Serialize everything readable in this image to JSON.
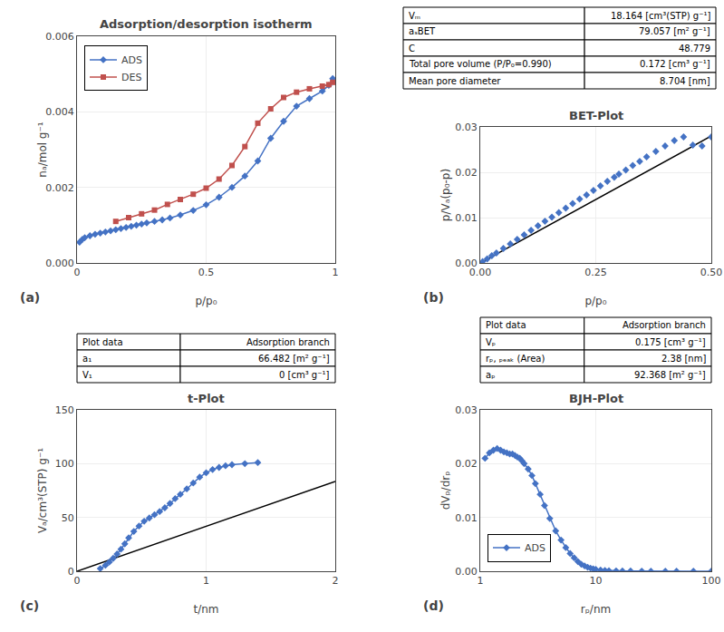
{
  "chart_data": [
    {
      "type": "line",
      "title": "Adsorption/desorption isotherm",
      "x_label": "p/p₀",
      "y_label": "nₐ/mol g⁻¹",
      "xlim": [
        0,
        1.0
      ],
      "xticks": [
        0,
        0.5,
        1
      ],
      "ylim": [
        0,
        0.006
      ],
      "yticks": [
        {
          "value": 0,
          "label": "0.000"
        },
        0.002,
        0.004,
        0.006
      ],
      "grid": true,
      "legend": "upper left",
      "series": [
        {
          "name": "ADS",
          "color": "#4472c4",
          "marker": "diamond",
          "x": [
            0.01,
            0.02,
            0.03,
            0.05,
            0.07,
            0.09,
            0.11,
            0.13,
            0.15,
            0.17,
            0.19,
            0.21,
            0.23,
            0.25,
            0.27,
            0.3,
            0.33,
            0.36,
            0.4,
            0.45,
            0.5,
            0.55,
            0.6,
            0.65,
            0.7,
            0.75,
            0.8,
            0.85,
            0.9,
            0.95,
            0.975,
            0.99
          ],
          "values": [
            0.00055,
            0.00062,
            0.00067,
            0.00072,
            0.00076,
            0.00079,
            0.00082,
            0.00085,
            0.00088,
            0.00091,
            0.00094,
            0.00097,
            0.001,
            0.00103,
            0.00106,
            0.0011,
            0.00114,
            0.00119,
            0.00127,
            0.00139,
            0.00154,
            0.00174,
            0.002,
            0.0023,
            0.0027,
            0.0033,
            0.00375,
            0.00415,
            0.00435,
            0.00455,
            0.0047,
            0.00488
          ]
        },
        {
          "name": "DES",
          "color": "#c0504d",
          "marker": "square",
          "x": [
            0.15,
            0.2,
            0.25,
            0.3,
            0.35,
            0.4,
            0.45,
            0.5,
            0.55,
            0.6,
            0.65,
            0.7,
            0.75,
            0.8,
            0.85,
            0.9,
            0.95,
            0.975,
            0.99
          ],
          "values": [
            0.0011,
            0.0012,
            0.0013,
            0.0014,
            0.00155,
            0.00168,
            0.00182,
            0.00198,
            0.00222,
            0.00258,
            0.00308,
            0.0037,
            0.00408,
            0.00438,
            0.00452,
            0.00461,
            0.00468,
            0.00472,
            0.00478
          ]
        }
      ],
      "annotations": [
        "(a)"
      ]
    },
    {
      "type": "line",
      "title": "BET-Plot",
      "x_label": "p/p₀",
      "y_label": "p/Vₐ(p₀-p)",
      "xlim": [
        0,
        0.5
      ],
      "xticks": [
        {
          "value": 0,
          "label": "0.00"
        },
        0.25,
        {
          "value": 0.5,
          "label": "0.50"
        }
      ],
      "ylim": [
        0,
        0.03
      ],
      "yticks": [
        {
          "value": 0,
          "label": "0.00"
        },
        0.01,
        0.02,
        0.03
      ],
      "grid": true,
      "series": [
        {
          "type": "line",
          "color": "#000000",
          "x": [
            0.0,
            0.5
          ],
          "values": [
            0.0,
            0.028
          ]
        },
        {
          "type": "scatter",
          "color": "#4472c4",
          "marker": "diamond",
          "x": [
            0.005,
            0.015,
            0.025,
            0.035,
            0.05,
            0.065,
            0.08,
            0.095,
            0.11,
            0.125,
            0.14,
            0.155,
            0.17,
            0.185,
            0.2,
            0.215,
            0.23,
            0.245,
            0.26,
            0.275,
            0.29,
            0.3,
            0.315,
            0.33,
            0.345,
            0.36,
            0.38,
            0.4,
            0.42,
            0.44,
            0.46,
            0.48,
            0.5
          ],
          "values": [
            0.0003,
            0.0009,
            0.0016,
            0.0022,
            0.0032,
            0.0042,
            0.0052,
            0.0062,
            0.0072,
            0.0082,
            0.0092,
            0.0101,
            0.0111,
            0.0121,
            0.0131,
            0.0141,
            0.015,
            0.016,
            0.017,
            0.018,
            0.0189,
            0.0196,
            0.0205,
            0.0215,
            0.0224,
            0.0234,
            0.0246,
            0.0258,
            0.027,
            0.0278,
            0.026,
            0.0258,
            0.0278
          ]
        }
      ],
      "table": [
        [
          "Vₘ",
          "18.164 [cm³(STP) g⁻¹]"
        ],
        [
          "aₛBET",
          "79.057 [m² g⁻¹]"
        ],
        [
          "C",
          "48.779"
        ],
        [
          "Total pore volume (P/P₀=0.990)",
          "0.172 [cm³ g⁻¹]"
        ],
        [
          "Mean pore diameter",
          "8.704 [nm]"
        ]
      ],
      "annotations": [
        "(b)"
      ]
    },
    {
      "type": "line",
      "title": "t-Plot",
      "x_label": "t/nm",
      "y_label": "Vₐ/cm³(STP) g⁻¹",
      "xlim": [
        0,
        2.0
      ],
      "xticks": [
        0,
        1,
        2
      ],
      "ylim": [
        0,
        150
      ],
      "yticks": [
        0,
        50,
        100,
        150
      ],
      "grid": true,
      "series": [
        {
          "type": "line",
          "color": "#000000",
          "x": [
            0.0,
            2.0
          ],
          "values": [
            0.0,
            83.5
          ]
        },
        {
          "type": "line",
          "color": "#4472c4",
          "marker": "diamond",
          "x": [
            0.18,
            0.22,
            0.25,
            0.28,
            0.31,
            0.34,
            0.37,
            0.4,
            0.44,
            0.48,
            0.52,
            0.56,
            0.6,
            0.64,
            0.68,
            0.72,
            0.76,
            0.8,
            0.85,
            0.9,
            0.95,
            1.0,
            1.05,
            1.1,
            1.15,
            1.2,
            1.3,
            1.4
          ],
          "values": [
            2.5,
            5.5,
            8.5,
            12.0,
            16.0,
            20.5,
            25.5,
            31.0,
            37.0,
            42.0,
            46.5,
            49.5,
            52.5,
            55.5,
            59.0,
            63.0,
            67.5,
            71.5,
            76.5,
            82.0,
            87.5,
            91.5,
            94.5,
            96.5,
            98.0,
            99.0,
            100.0,
            101.0
          ]
        }
      ],
      "table": [
        [
          "Plot data",
          "Adsorption branch"
        ],
        [
          "a₁",
          "66.482 [m² g⁻¹]"
        ],
        [
          "V₁",
          "0 [cm³ g⁻¹]"
        ]
      ],
      "annotations": [
        "(c)"
      ]
    },
    {
      "type": "line",
      "title": "BJH-Plot",
      "x_label": "rₚ/nm",
      "y_label": "dVₚ/drₚ",
      "log": "x",
      "xlim": [
        1,
        100
      ],
      "xticks": [
        1,
        10,
        100
      ],
      "ylim": [
        0,
        0.03
      ],
      "yticks": [
        {
          "value": 0,
          "label": "0.00"
        },
        0.01,
        0.02,
        0.03
      ],
      "grid": true,
      "legend": "lower left",
      "series": [
        {
          "name": "ADS",
          "color": "#4472c4",
          "marker": "diamond",
          "x": [
            1.1,
            1.2,
            1.3,
            1.4,
            1.5,
            1.6,
            1.7,
            1.8,
            1.9,
            2.0,
            2.1,
            2.2,
            2.3,
            2.4,
            2.6,
            2.8,
            3.0,
            3.3,
            3.6,
            4.0,
            4.5,
            5.0,
            5.5,
            6.0,
            6.5,
            7.0,
            7.5,
            8.0,
            8.5,
            9.0,
            9.5,
            10.0,
            11.0,
            12.0,
            13.0,
            15.0,
            17.0,
            20.0,
            25.0,
            30.0,
            40.0,
            50.0,
            70.0,
            100.0
          ],
          "values": [
            0.021,
            0.022,
            0.0225,
            0.0228,
            0.0225,
            0.0222,
            0.022,
            0.0218,
            0.0218,
            0.0215,
            0.0212,
            0.021,
            0.0205,
            0.02,
            0.019,
            0.0178,
            0.0163,
            0.0143,
            0.0122,
            0.0098,
            0.0075,
            0.0058,
            0.0044,
            0.0033,
            0.0025,
            0.0018,
            0.0013,
            0.001,
            0.00075,
            0.00058,
            0.00045,
            0.00035,
            0.00022,
            0.00015,
            0.0001,
            7e-05,
            5e-05,
            4e-05,
            3e-05,
            2e-05,
            1e-05,
            8e-06,
            5e-06,
            3e-06
          ]
        }
      ],
      "table": [
        [
          "Plot data",
          "Adsorption branch"
        ],
        [
          "Vₚ",
          "0.175 [cm³ g⁻¹]"
        ],
        [
          "rₚ, ₚₑₐₖ (Area)",
          "2.38 [nm]"
        ],
        [
          "aₚ",
          "92.368 [m² g⁻¹]"
        ]
      ],
      "annotations": [
        "(d)"
      ]
    }
  ]
}
